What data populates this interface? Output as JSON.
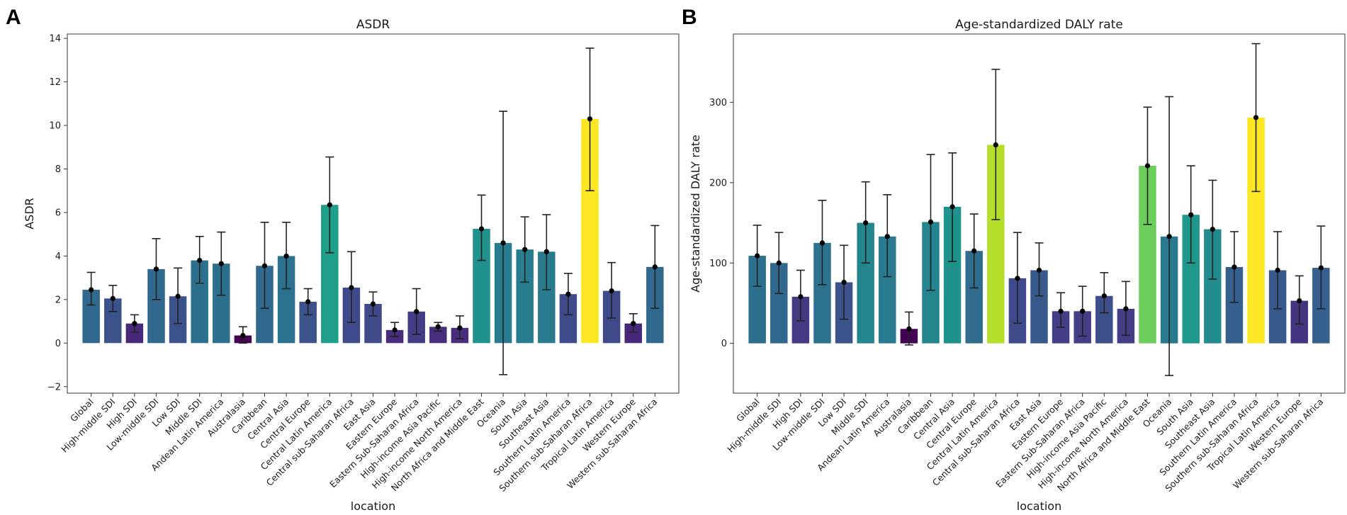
{
  "panels": [
    {
      "letter": "A"
    },
    {
      "letter": "B"
    }
  ],
  "chart_data": [
    {
      "type": "bar",
      "title": "ASDR",
      "xlabel": "location",
      "ylabel": "ASDR",
      "ylim": [
        -2.3,
        14.2
      ],
      "yticks": [
        -2,
        0,
        2,
        4,
        6,
        8,
        10,
        12,
        14
      ],
      "ytick_labels": [
        "−2",
        "0",
        "2",
        "4",
        "6",
        "8",
        "10",
        "12",
        "14"
      ],
      "categories": [
        "Global",
        "High-middle SDI",
        "High SDI",
        "Low-middle SDI",
        "Low SDI",
        "Middle SDI",
        "Andean Latin America",
        "Australasia",
        "Caribbean",
        "Central Asia",
        "Central Europe",
        "Central Latin America",
        "Central sub-Saharan Africa",
        "East Asia",
        "Eastern Europe",
        "Eastern Sub-Saharan Africa",
        "High-income Asia Pacific",
        "High-income North America",
        "North Africa and Middle East",
        "Oceania",
        "South Asia",
        "Southeast Asia",
        "Southern Latin America",
        "Southern sub-Saharan Africa",
        "Tropical Latin America",
        "Western Europe",
        "Western sub-Saharan Africa"
      ],
      "values": [
        2.45,
        2.05,
        0.9,
        3.4,
        2.15,
        3.8,
        3.65,
        0.35,
        3.55,
        4.0,
        1.9,
        6.35,
        2.55,
        1.8,
        0.6,
        1.45,
        0.75,
        0.7,
        5.25,
        4.6,
        4.3,
        4.2,
        2.25,
        10.3,
        2.4,
        0.9,
        3.5
      ],
      "err_low": [
        1.75,
        1.45,
        0.5,
        2.0,
        0.9,
        2.75,
        2.2,
        0.0,
        1.6,
        2.5,
        1.3,
        4.15,
        0.95,
        1.25,
        0.3,
        0.4,
        0.55,
        0.2,
        3.8,
        -1.45,
        2.8,
        2.45,
        1.3,
        7.0,
        1.15,
        0.5,
        1.6
      ],
      "err_high": [
        3.25,
        2.65,
        1.3,
        4.8,
        3.45,
        4.9,
        5.1,
        0.75,
        5.55,
        5.55,
        2.5,
        8.55,
        4.2,
        2.35,
        0.95,
        2.5,
        0.95,
        1.25,
        6.8,
        10.65,
        5.8,
        5.9,
        3.2,
        13.55,
        3.7,
        1.35,
        5.4
      ],
      "colors": [
        "#31688e",
        "#3b528b",
        "#482878",
        "#31688e",
        "#3b528b",
        "#2d708e",
        "#2d708e",
        "#440154",
        "#31688e",
        "#2c728e",
        "#3b528b",
        "#1f9e89",
        "#3e4a89",
        "#3e4a89",
        "#472d7b",
        "#433e85",
        "#472d7b",
        "#472d7b",
        "#21918c",
        "#287c8e",
        "#287d8e",
        "#287c8e",
        "#3e4a89",
        "#fde725",
        "#3e4a89",
        "#482878",
        "#31688e"
      ]
    },
    {
      "type": "bar",
      "title": "Age-standardized DALY rate",
      "xlabel": "location",
      "ylabel": "Age-standardized DALY rate",
      "ylim": [
        -62,
        385
      ],
      "yticks": [
        0,
        100,
        200,
        300
      ],
      "ytick_labels": [
        "0",
        "100",
        "200",
        "300"
      ],
      "categories": [
        "Global",
        "High-middle SDI",
        "High SDI",
        "Low-middle SDI",
        "Low SDI",
        "Middle SDI",
        "Andean Latin America",
        "Australasia",
        "Caribbean",
        "Central Asia",
        "Central Europe",
        "Central Latin America",
        "Central sub-Saharan Africa",
        "East Asia",
        "Eastern Europe",
        "Eastern Sub-Saharan Africa",
        "High-income Asia Pacific",
        "High-income North America",
        "North Africa and Middle East",
        "Oceania",
        "South Asia",
        "Southeast Asia",
        "Southern Latin America",
        "Southern sub-Saharan Africa",
        "Tropical Latin America",
        "Western Europe",
        "Western sub-Saharan Africa"
      ],
      "values": [
        109,
        100,
        58,
        125,
        76,
        150,
        133,
        18,
        151,
        170,
        115,
        247,
        81,
        91,
        40,
        40,
        59,
        43,
        221,
        133,
        160,
        142,
        95,
        281,
        91,
        53,
        94
      ],
      "err_low": [
        71,
        62,
        28,
        73,
        30,
        100,
        83,
        -2,
        66,
        102,
        69,
        154,
        25,
        59,
        20,
        9,
        38,
        10,
        148,
        -40,
        100,
        80,
        51,
        189,
        43,
        24,
        43
      ],
      "err_high": [
        147,
        138,
        91,
        178,
        122,
        201,
        185,
        39,
        235,
        237,
        161,
        341,
        138,
        125,
        63,
        71,
        88,
        77,
        294,
        307,
        221,
        203,
        139,
        373,
        139,
        84,
        146
      ],
      "colors": [
        "#2d708e",
        "#31688e",
        "#443a83",
        "#2c728e",
        "#3b528b",
        "#25858e",
        "#297a8e",
        "#440154",
        "#25858e",
        "#20928c",
        "#2f6c8e",
        "#b5de2b",
        "#3e4a89",
        "#38598c",
        "#433e85",
        "#433e85",
        "#3c4f8a",
        "#433e85",
        "#6ccd5a",
        "#297a8e",
        "#1f978b",
        "#228b8d",
        "#355f8d",
        "#fde725",
        "#38598c",
        "#453581",
        "#355f8d"
      ]
    }
  ]
}
